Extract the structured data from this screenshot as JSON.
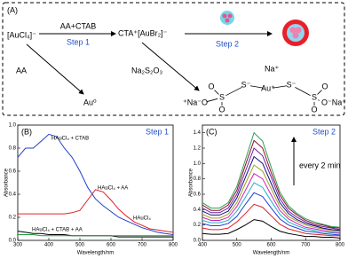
{
  "diagram": {
    "label": "(A)",
    "reactant": "[AuCl₄]⁻",
    "reagent_1": "AA+CTAB",
    "step_1": "Step 1",
    "intermediate": "CTA⁺[AuBr₂]⁻",
    "step_2": "Step 2",
    "reagent_2": "AA",
    "product_1": "Au⁰",
    "reagent_3": "Na₂S₂O₃",
    "atoms": [
      "Na⁺",
      "S⁻",
      "Au⁺",
      "S⁻",
      "S",
      "O",
      "O",
      "⁺Na⁻O",
      "S",
      "O",
      "O",
      "O⁻Na⁺"
    ]
  },
  "chart_data": [
    {
      "type": "line",
      "panel_label": "(B)",
      "step_label": "Step 1",
      "xlabel": "Wavelength/nm",
      "ylabel": "Absorbance",
      "x": [
        300,
        325,
        350,
        375,
        400,
        425,
        450,
        475,
        500,
        525,
        550,
        575,
        600,
        625,
        650,
        675,
        700,
        725,
        750,
        775,
        800
      ],
      "series": [
        {
          "name": "HAuCl₄ + CTAB",
          "color": "#1f3fd0",
          "values": [
            0.72,
            0.8,
            0.8,
            0.86,
            0.92,
            0.9,
            0.8,
            0.72,
            0.6,
            0.46,
            0.36,
            0.3,
            0.25,
            0.2,
            0.17,
            0.14,
            0.11,
            0.09,
            0.07,
            0.06,
            0.05
          ]
        },
        {
          "name": "HAuCl₄ + AA",
          "color": "#e0202a",
          "values": [
            0.23,
            0.23,
            0.23,
            0.23,
            0.23,
            0.23,
            0.23,
            0.24,
            0.26,
            0.35,
            0.44,
            0.42,
            0.35,
            0.27,
            0.21,
            0.16,
            0.13,
            0.1,
            0.09,
            0.08,
            0.07
          ]
        },
        {
          "name": "HAuCl₄",
          "color": "#000000",
          "values": [
            0.08,
            0.07,
            0.06,
            0.06,
            0.05,
            0.05,
            0.05,
            0.04,
            0.04,
            0.04,
            0.04,
            0.04,
            0.04,
            0.03,
            0.03,
            0.03,
            0.03,
            0.03,
            0.03,
            0.03,
            0.03
          ]
        },
        {
          "name": "HAuCl₄ + CTAB + AA",
          "color": "#20a040",
          "values": [
            0.05,
            0.05,
            0.05,
            0.04,
            0.04,
            0.04,
            0.04,
            0.04,
            0.04,
            0.04,
            0.04,
            0.04,
            0.04,
            0.04,
            0.04,
            0.04,
            0.04,
            0.04,
            0.04,
            0.04,
            0.04
          ]
        }
      ],
      "xlim": [
        300,
        800
      ],
      "xticks": [
        300,
        400,
        500,
        600,
        700,
        800
      ],
      "ylim": [
        0,
        1.0
      ],
      "yticks": [
        {
          "value": 0,
          "label": "0.0"
        },
        {
          "value": 0.2,
          "label": "0.2"
        },
        {
          "value": 0.4,
          "label": "0.4"
        },
        {
          "value": 0.6,
          "label": "0.6"
        },
        {
          "value": 0.8,
          "label": "0.8"
        },
        {
          "value": 1.0,
          "label": "1.0"
        }
      ]
    },
    {
      "type": "line",
      "panel_label": "(C)",
      "step_label": "Step 2",
      "arrow_label": "every 2 min",
      "xlabel": "Wavelength/nm",
      "ylabel": "Absorbance",
      "x": [
        400,
        425,
        450,
        475,
        500,
        525,
        550,
        575,
        600,
        625,
        650,
        675,
        700,
        725,
        750,
        775,
        800
      ],
      "series": [
        {
          "color": "#000000",
          "values": [
            0.09,
            0.08,
            0.08,
            0.09,
            0.14,
            0.2,
            0.27,
            0.25,
            0.18,
            0.12,
            0.09,
            0.07,
            0.05,
            0.05,
            0.04,
            0.04,
            0.03
          ]
        },
        {
          "color": "#e0202a",
          "values": [
            0.16,
            0.14,
            0.14,
            0.16,
            0.24,
            0.35,
            0.47,
            0.43,
            0.32,
            0.21,
            0.15,
            0.12,
            0.09,
            0.08,
            0.07,
            0.06,
            0.06
          ]
        },
        {
          "color": "#1f3fd0",
          "values": [
            0.22,
            0.19,
            0.19,
            0.22,
            0.31,
            0.47,
            0.62,
            0.57,
            0.42,
            0.28,
            0.2,
            0.16,
            0.12,
            0.11,
            0.09,
            0.08,
            0.07
          ]
        },
        {
          "color": "#20b0c8",
          "values": [
            0.26,
            0.23,
            0.23,
            0.26,
            0.38,
            0.56,
            0.75,
            0.69,
            0.51,
            0.34,
            0.24,
            0.19,
            0.15,
            0.13,
            0.11,
            0.1,
            0.09
          ]
        },
        {
          "color": "#d020c0",
          "values": [
            0.3,
            0.26,
            0.26,
            0.3,
            0.44,
            0.65,
            0.87,
            0.8,
            0.59,
            0.39,
            0.28,
            0.22,
            0.17,
            0.15,
            0.13,
            0.11,
            0.1
          ]
        },
        {
          "color": "#a0a020",
          "values": [
            0.34,
            0.29,
            0.29,
            0.34,
            0.49,
            0.74,
            0.98,
            0.9,
            0.67,
            0.44,
            0.31,
            0.25,
            0.2,
            0.17,
            0.15,
            0.13,
            0.12
          ]
        },
        {
          "color": "#101080",
          "values": [
            0.38,
            0.33,
            0.33,
            0.38,
            0.55,
            0.82,
            1.09,
            1.0,
            0.74,
            0.49,
            0.35,
            0.27,
            0.22,
            0.19,
            0.16,
            0.14,
            0.13
          ]
        },
        {
          "color": "#7020a0",
          "values": [
            0.42,
            0.36,
            0.36,
            0.42,
            0.6,
            0.9,
            1.2,
            1.1,
            0.82,
            0.54,
            0.38,
            0.3,
            0.24,
            0.2,
            0.18,
            0.16,
            0.14
          ]
        },
        {
          "color": "#8a1030",
          "values": [
            0.46,
            0.39,
            0.39,
            0.46,
            0.65,
            0.98,
            1.3,
            1.2,
            0.88,
            0.59,
            0.42,
            0.33,
            0.26,
            0.22,
            0.2,
            0.17,
            0.16
          ]
        },
        {
          "color": "#30a050",
          "values": [
            0.49,
            0.42,
            0.42,
            0.49,
            0.7,
            1.05,
            1.4,
            1.29,
            0.95,
            0.63,
            0.45,
            0.35,
            0.28,
            0.24,
            0.21,
            0.18,
            0.17
          ]
        }
      ],
      "xlim": [
        400,
        800
      ],
      "xticks": [
        400,
        500,
        600,
        700,
        800
      ],
      "ylim": [
        0,
        1.5
      ],
      "yticks": [
        {
          "value": 0,
          "label": "0.0"
        },
        {
          "value": 0.2,
          "label": "0.2"
        },
        {
          "value": 0.4,
          "label": "0.4"
        },
        {
          "value": 0.6,
          "label": "0.6"
        },
        {
          "value": 0.8,
          "label": "0.8"
        },
        {
          "value": 1.0,
          "label": "1.0"
        },
        {
          "value": 1.2,
          "label": "1.2"
        },
        {
          "value": 1.4,
          "label": "1.4"
        }
      ]
    }
  ]
}
